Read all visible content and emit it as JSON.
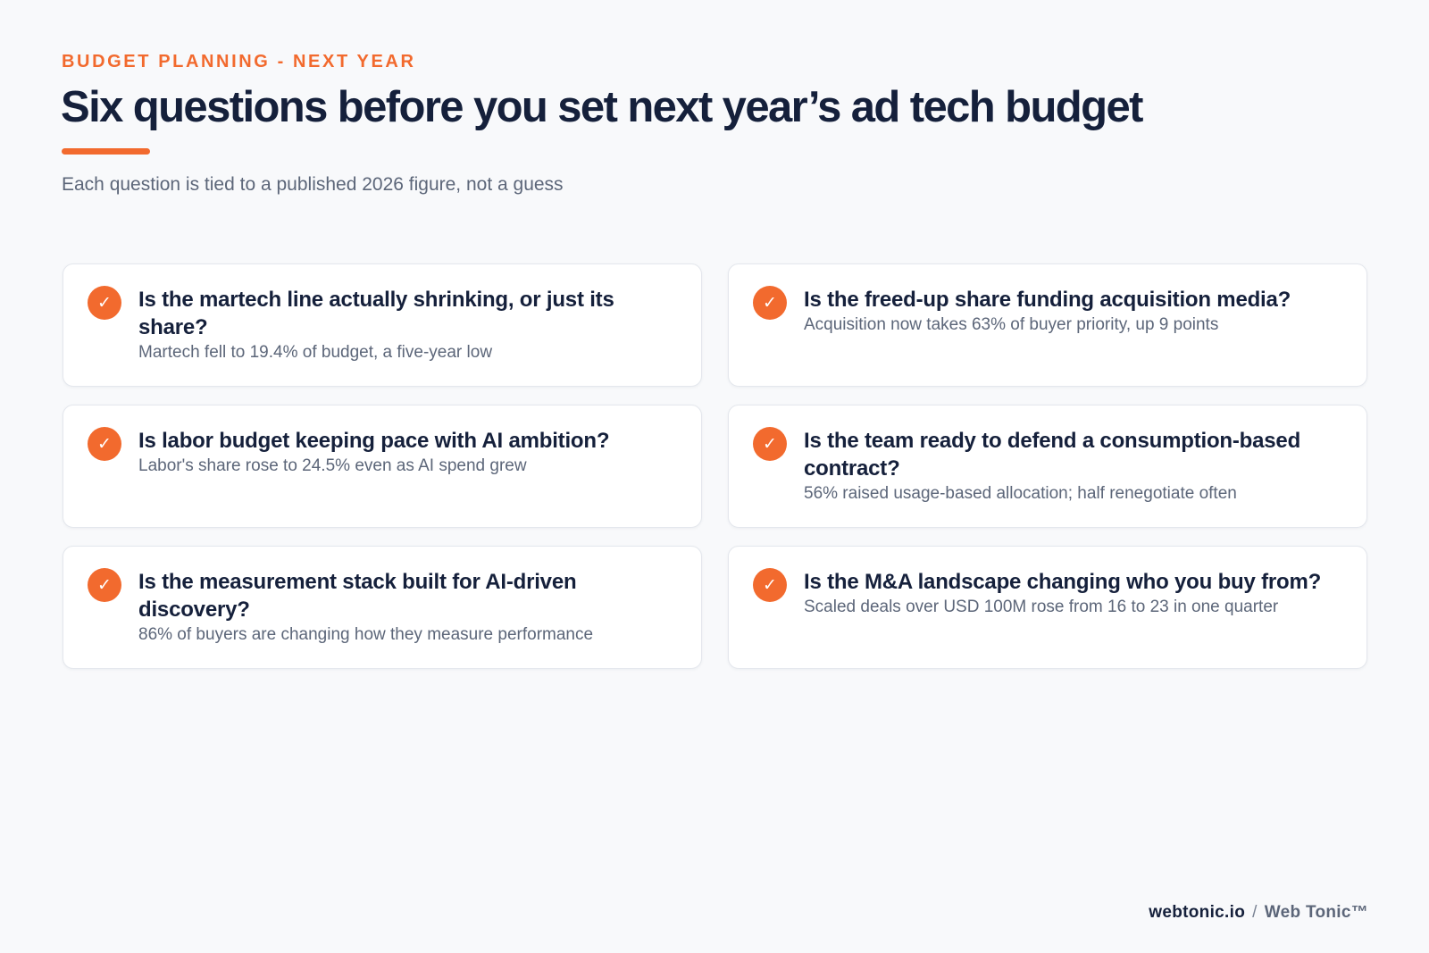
{
  "header": {
    "eyebrow": "BUDGET PLANNING - NEXT YEAR",
    "title": "Six questions before you set next year’s ad tech budget",
    "subtitle": "Each question is tied to a published 2026 figure, not a guess"
  },
  "accent_color": "#f26a2e",
  "cards": [
    {
      "icon": "check-icon",
      "question": "Is the martech line actually shrinking, or just its share?",
      "fact": "Martech fell to 19.4% of budget, a five-year low"
    },
    {
      "icon": "check-icon",
      "question": "Is the freed-up share funding acquisition media?",
      "fact": "Acquisition now takes 63% of buyer priority, up 9 points"
    },
    {
      "icon": "check-icon",
      "question": "Is labor budget keeping pace with AI ambition?",
      "fact": "Labor's share rose to 24.5% even as AI spend grew"
    },
    {
      "icon": "check-icon",
      "question": "Is the team ready to defend a consumption-based contract?",
      "fact": "56% raised usage-based allocation; half renegotiate often"
    },
    {
      "icon": "check-icon",
      "question": "Is the measurement stack built for AI-driven discovery?",
      "fact": "86% of buyers are changing how they measure performance"
    },
    {
      "icon": "check-icon",
      "question": "Is the M&A landscape changing who you buy from?",
      "fact": "Scaled deals over USD 100M rose from 16 to 23 in one quarter"
    }
  ],
  "footer": {
    "site": "webtonic.io",
    "separator": "/",
    "brand": "Web Tonic™"
  }
}
